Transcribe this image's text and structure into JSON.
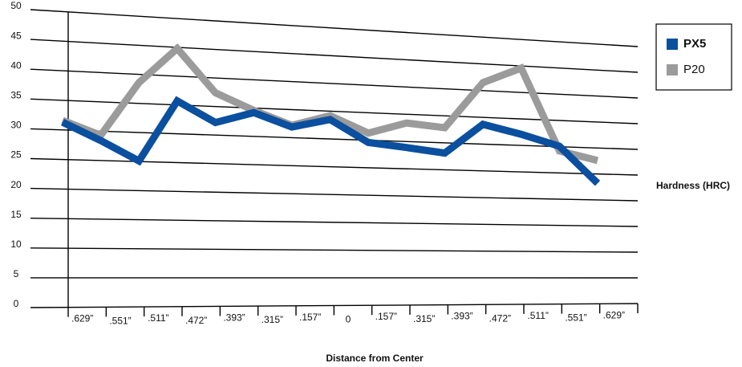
{
  "chart_data": {
    "type": "line",
    "x_label": "Distance from Center",
    "y_label": "Hardness (HRC)",
    "categories": [
      ".629”",
      ".551”",
      ".511”",
      ".472”",
      ".393”",
      ".315”",
      ".157”",
      "0",
      ".157”",
      ".315”",
      ".393”",
      ".472”",
      ".511”",
      ".551”",
      ".629”"
    ],
    "series": [
      {
        "name": "PX5",
        "color": "#0b4f9f",
        "values": [
          31.3,
          28.4,
          25.1,
          35.7,
          32.2,
          34.2,
          31.9,
          33.5,
          29.6,
          28.9,
          28.1,
          33.7,
          32.1,
          30.1,
          23.2
        ]
      },
      {
        "name": "P20",
        "color": "#9b9b9b",
        "values": [
          31.6,
          29.3,
          38.6,
          44.8,
          37.4,
          34.6,
          32.2,
          34.2,
          31.3,
          33.4,
          32.8,
          41.5,
          44.6,
          29.2,
          27.6
        ]
      }
    ],
    "ylim": [
      0,
      50
    ],
    "yticks": [
      0,
      5,
      10,
      15,
      20,
      25,
      30,
      35,
      40,
      45,
      50
    ],
    "grid": true,
    "legend": "top-right"
  }
}
